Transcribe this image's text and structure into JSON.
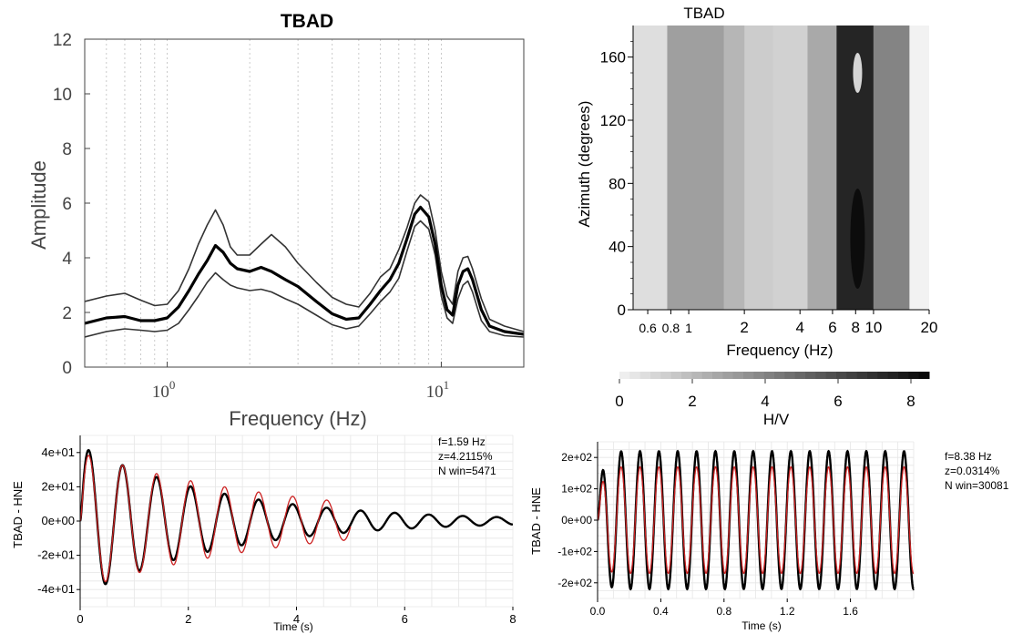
{
  "colors": {
    "mean": "#000000",
    "band": "#333333",
    "model": "#cc2222",
    "grid": "#bdbdbd"
  },
  "chart_data": [
    {
      "id": "hv_curve",
      "type": "line",
      "title": "TBAD",
      "xlabel": "Frequency (Hz)",
      "ylabel": "Amplitude",
      "xscale": "log",
      "xlim": [
        0.5,
        20
      ],
      "ylim": [
        0,
        12
      ],
      "xticks": [
        {
          "v": 1,
          "base": "10",
          "exp": "0"
        },
        {
          "v": 10,
          "base": "10",
          "exp": "1"
        }
      ],
      "yticks": [
        0,
        2,
        4,
        6,
        8,
        10,
        12
      ],
      "grid": "vertical-dotted",
      "x": [
        0.5,
        0.6,
        0.7,
        0.8,
        0.9,
        1.0,
        1.1,
        1.2,
        1.3,
        1.4,
        1.5,
        1.6,
        1.7,
        1.8,
        2.0,
        2.2,
        2.4,
        2.7,
        3.0,
        3.5,
        4.0,
        4.5,
        5.0,
        5.5,
        6.0,
        6.5,
        7.0,
        7.5,
        8.0,
        8.4,
        9.0,
        9.5,
        10.0,
        10.5,
        11.0,
        11.5,
        12.0,
        12.5,
        13.0,
        14.0,
        15.0,
        17.0,
        20.0
      ],
      "series": [
        {
          "name": "mean",
          "values": [
            1.6,
            1.8,
            1.85,
            1.7,
            1.7,
            1.8,
            2.2,
            2.8,
            3.4,
            3.9,
            4.45,
            4.2,
            3.8,
            3.6,
            3.5,
            3.65,
            3.5,
            3.2,
            2.95,
            2.4,
            1.95,
            1.75,
            1.8,
            2.3,
            2.8,
            3.2,
            3.8,
            4.7,
            5.6,
            5.85,
            5.5,
            4.5,
            3.0,
            2.1,
            1.9,
            3.0,
            3.5,
            3.6,
            3.2,
            2.1,
            1.5,
            1.3,
            1.2
          ]
        },
        {
          "name": "upper",
          "values": [
            2.4,
            2.6,
            2.7,
            2.45,
            2.25,
            2.3,
            2.8,
            3.6,
            4.5,
            5.2,
            5.75,
            5.2,
            4.4,
            4.1,
            4.1,
            4.5,
            4.85,
            4.4,
            3.8,
            3.1,
            2.55,
            2.3,
            2.2,
            2.7,
            3.3,
            3.6,
            4.3,
            5.1,
            6.0,
            6.3,
            6.05,
            5.0,
            3.5,
            2.6,
            2.3,
            3.5,
            4.0,
            4.05,
            3.6,
            2.5,
            1.75,
            1.5,
            1.3
          ]
        },
        {
          "name": "lower",
          "values": [
            1.1,
            1.3,
            1.4,
            1.35,
            1.3,
            1.35,
            1.6,
            2.1,
            2.6,
            3.1,
            3.45,
            3.2,
            3.0,
            2.9,
            2.8,
            2.85,
            2.75,
            2.5,
            2.3,
            1.9,
            1.55,
            1.4,
            1.5,
            1.95,
            2.4,
            2.75,
            3.25,
            4.25,
            5.15,
            5.35,
            5.05,
            4.1,
            2.6,
            1.8,
            1.6,
            2.5,
            3.0,
            3.15,
            2.75,
            1.7,
            1.3,
            1.15,
            1.1
          ]
        }
      ]
    },
    {
      "id": "azimuth_map",
      "type": "heatmap",
      "title": "TBAD",
      "xlabel": "Frequency (Hz)",
      "ylabel": "Azimuth (degrees)",
      "xscale": "log",
      "xlim": [
        0.5,
        20
      ],
      "ylim": [
        0,
        180
      ],
      "xticks": [
        {
          "v": 0.6,
          "label": "0.6"
        },
        {
          "v": 0.8,
          "label": "0.8"
        },
        {
          "v": 1,
          "label": "1"
        },
        {
          "v": 2,
          "label": "2"
        },
        {
          "v": 4,
          "label": "4"
        },
        {
          "v": 6,
          "label": "6"
        },
        {
          "v": 8,
          "label": "8"
        },
        {
          "v": 10,
          "label": "10"
        },
        {
          "v": 20,
          "label": "20"
        }
      ],
      "yticks": [
        0,
        40,
        80,
        120,
        160
      ],
      "colorbar": {
        "label": "H/V",
        "range": [
          0,
          8.5
        ],
        "ticks": [
          "0",
          "2",
          "4",
          "6",
          "8"
        ]
      },
      "bands": [
        {
          "f": 0.6,
          "width": 0.05,
          "value": 0.6
        },
        {
          "f": 1.5,
          "width": 0.09,
          "value": 3.0
        },
        {
          "f": 2.25,
          "width": 0.05,
          "value": 2.1
        },
        {
          "f": 2.7,
          "width": 0.04,
          "value": 1.3
        },
        {
          "f": 4.0,
          "width": 0.045,
          "value": 1.1
        },
        {
          "f": 5.5,
          "width": 0.03,
          "value": 2.6
        },
        {
          "f": 8.2,
          "width": 0.035,
          "value": 7.6
        },
        {
          "f": 12.5,
          "width": 0.03,
          "value": 4.0
        }
      ]
    },
    {
      "id": "decay_fit_1",
      "type": "line",
      "xlabel": "Time (s)",
      "ylabel": "TBAD - HNE",
      "xlim": [
        0,
        8
      ],
      "ylim": [
        -50,
        50
      ],
      "xticks": [
        "0",
        "2",
        "4",
        "6",
        "8"
      ],
      "yticks": [
        {
          "v": 40,
          "label": "4e+01"
        },
        {
          "v": 20,
          "label": "2e+01"
        },
        {
          "v": 0,
          "label": "0e+00"
        },
        {
          "v": -20,
          "label": "-2e+01"
        },
        {
          "v": -40,
          "label": "-4e+01"
        }
      ],
      "signal": {
        "freq": 1.59,
        "amp": 44,
        "decay": 0.38
      },
      "model": {
        "freq": 1.59,
        "amp": 40,
        "decay": 0.26,
        "tmax": 5.0
      },
      "info": [
        "f=1.59 Hz",
        "z=4.2115%",
        "N win=5471"
      ]
    },
    {
      "id": "decay_fit_2",
      "type": "line",
      "xlabel": "Time (s)",
      "ylabel": "TBAD - HNE",
      "xlim": [
        0,
        2.0
      ],
      "ylim": [
        -250,
        250
      ],
      "xticks": [
        "0.0",
        "0.4",
        "0.8",
        "1.2",
        "1.6"
      ],
      "yticks": [
        {
          "v": 200,
          "label": "2e+02"
        },
        {
          "v": 100,
          "label": "1e+02"
        },
        {
          "v": 0,
          "label": "0e+00"
        },
        {
          "v": -100,
          "label": "-1e+02"
        },
        {
          "v": -200,
          "label": "-2e+02"
        }
      ],
      "signal": {
        "freq": 8.38,
        "amp": 220,
        "decay": 0.0
      },
      "model": {
        "freq": 8.38,
        "amp": 170,
        "decay": 0.0,
        "tmax": 2.0
      },
      "info": [
        "f=8.38 Hz",
        "z=0.0314%",
        "N win=30081"
      ]
    }
  ]
}
